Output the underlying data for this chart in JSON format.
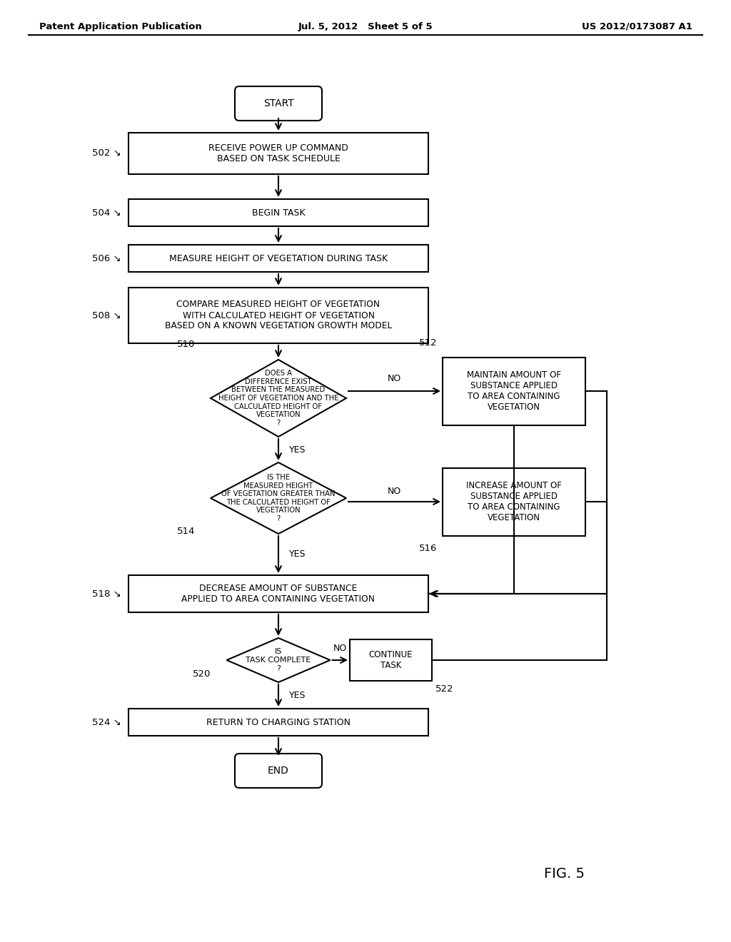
{
  "header_left": "Patent Application Publication",
  "header_mid": "Jul. 5, 2012   Sheet 5 of 5",
  "header_right": "US 2012/0173087 A1",
  "fig_label": "FIG. 5",
  "background_color": "#ffffff",
  "line_color": "#000000",
  "text_color": "#000000",
  "start_label": "START",
  "end_label": "END",
  "box502_label": "RECEIVE POWER UP COMMAND\nBASED ON TASK SCHEDULE",
  "box502_num": "502",
  "box504_label": "BEGIN TASK",
  "box504_num": "504",
  "box506_label": "MEASURE HEIGHT OF VEGETATION DURING TASK",
  "box506_num": "506",
  "box508_label": "COMPARE MEASURED HEIGHT OF VEGETATION\nWITH CALCULATED HEIGHT OF VEGETATION\nBASED ON A KNOWN VEGETATION GROWTH MODEL",
  "box508_num": "508",
  "d510_label": "DOES A\nDIFFERENCE EXIST\nBETWEEN THE MEASURED\nHEIGHT OF VEGETATION AND THE\nCALCULATED HEIGHT OF\nVEGETATION\n?",
  "d510_num": "510",
  "box512_label": "MAINTAIN AMOUNT OF\nSUBSTANCE APPLIED\nTO AREA CONTAINING\nVEGETATION",
  "box512_num": "512",
  "d514_label": "IS THE\nMEASURED HEIGHT\nOF VEGETATION GREATER THAN\nTHE CALCULATED HEIGHT OF\nVEGETATION\n?",
  "d514_num": "514",
  "box516_label": "INCREASE AMOUNT OF\nSUBSTANCE APPLIED\nTO AREA CONTAINING\nVEGETATION",
  "box516_num": "516",
  "box518_label": "DECREASE AMOUNT OF SUBSTANCE\nAPPLIED TO AREA CONTAINING VEGETATION",
  "box518_num": "518",
  "d520_label": "IS\nTASK COMPLETE\n?",
  "d520_num": "520",
  "box522_label": "CONTINUE\nTASK",
  "box522_num": "522",
  "box524_label": "RETURN TO CHARGING STATION",
  "box524_num": "524"
}
